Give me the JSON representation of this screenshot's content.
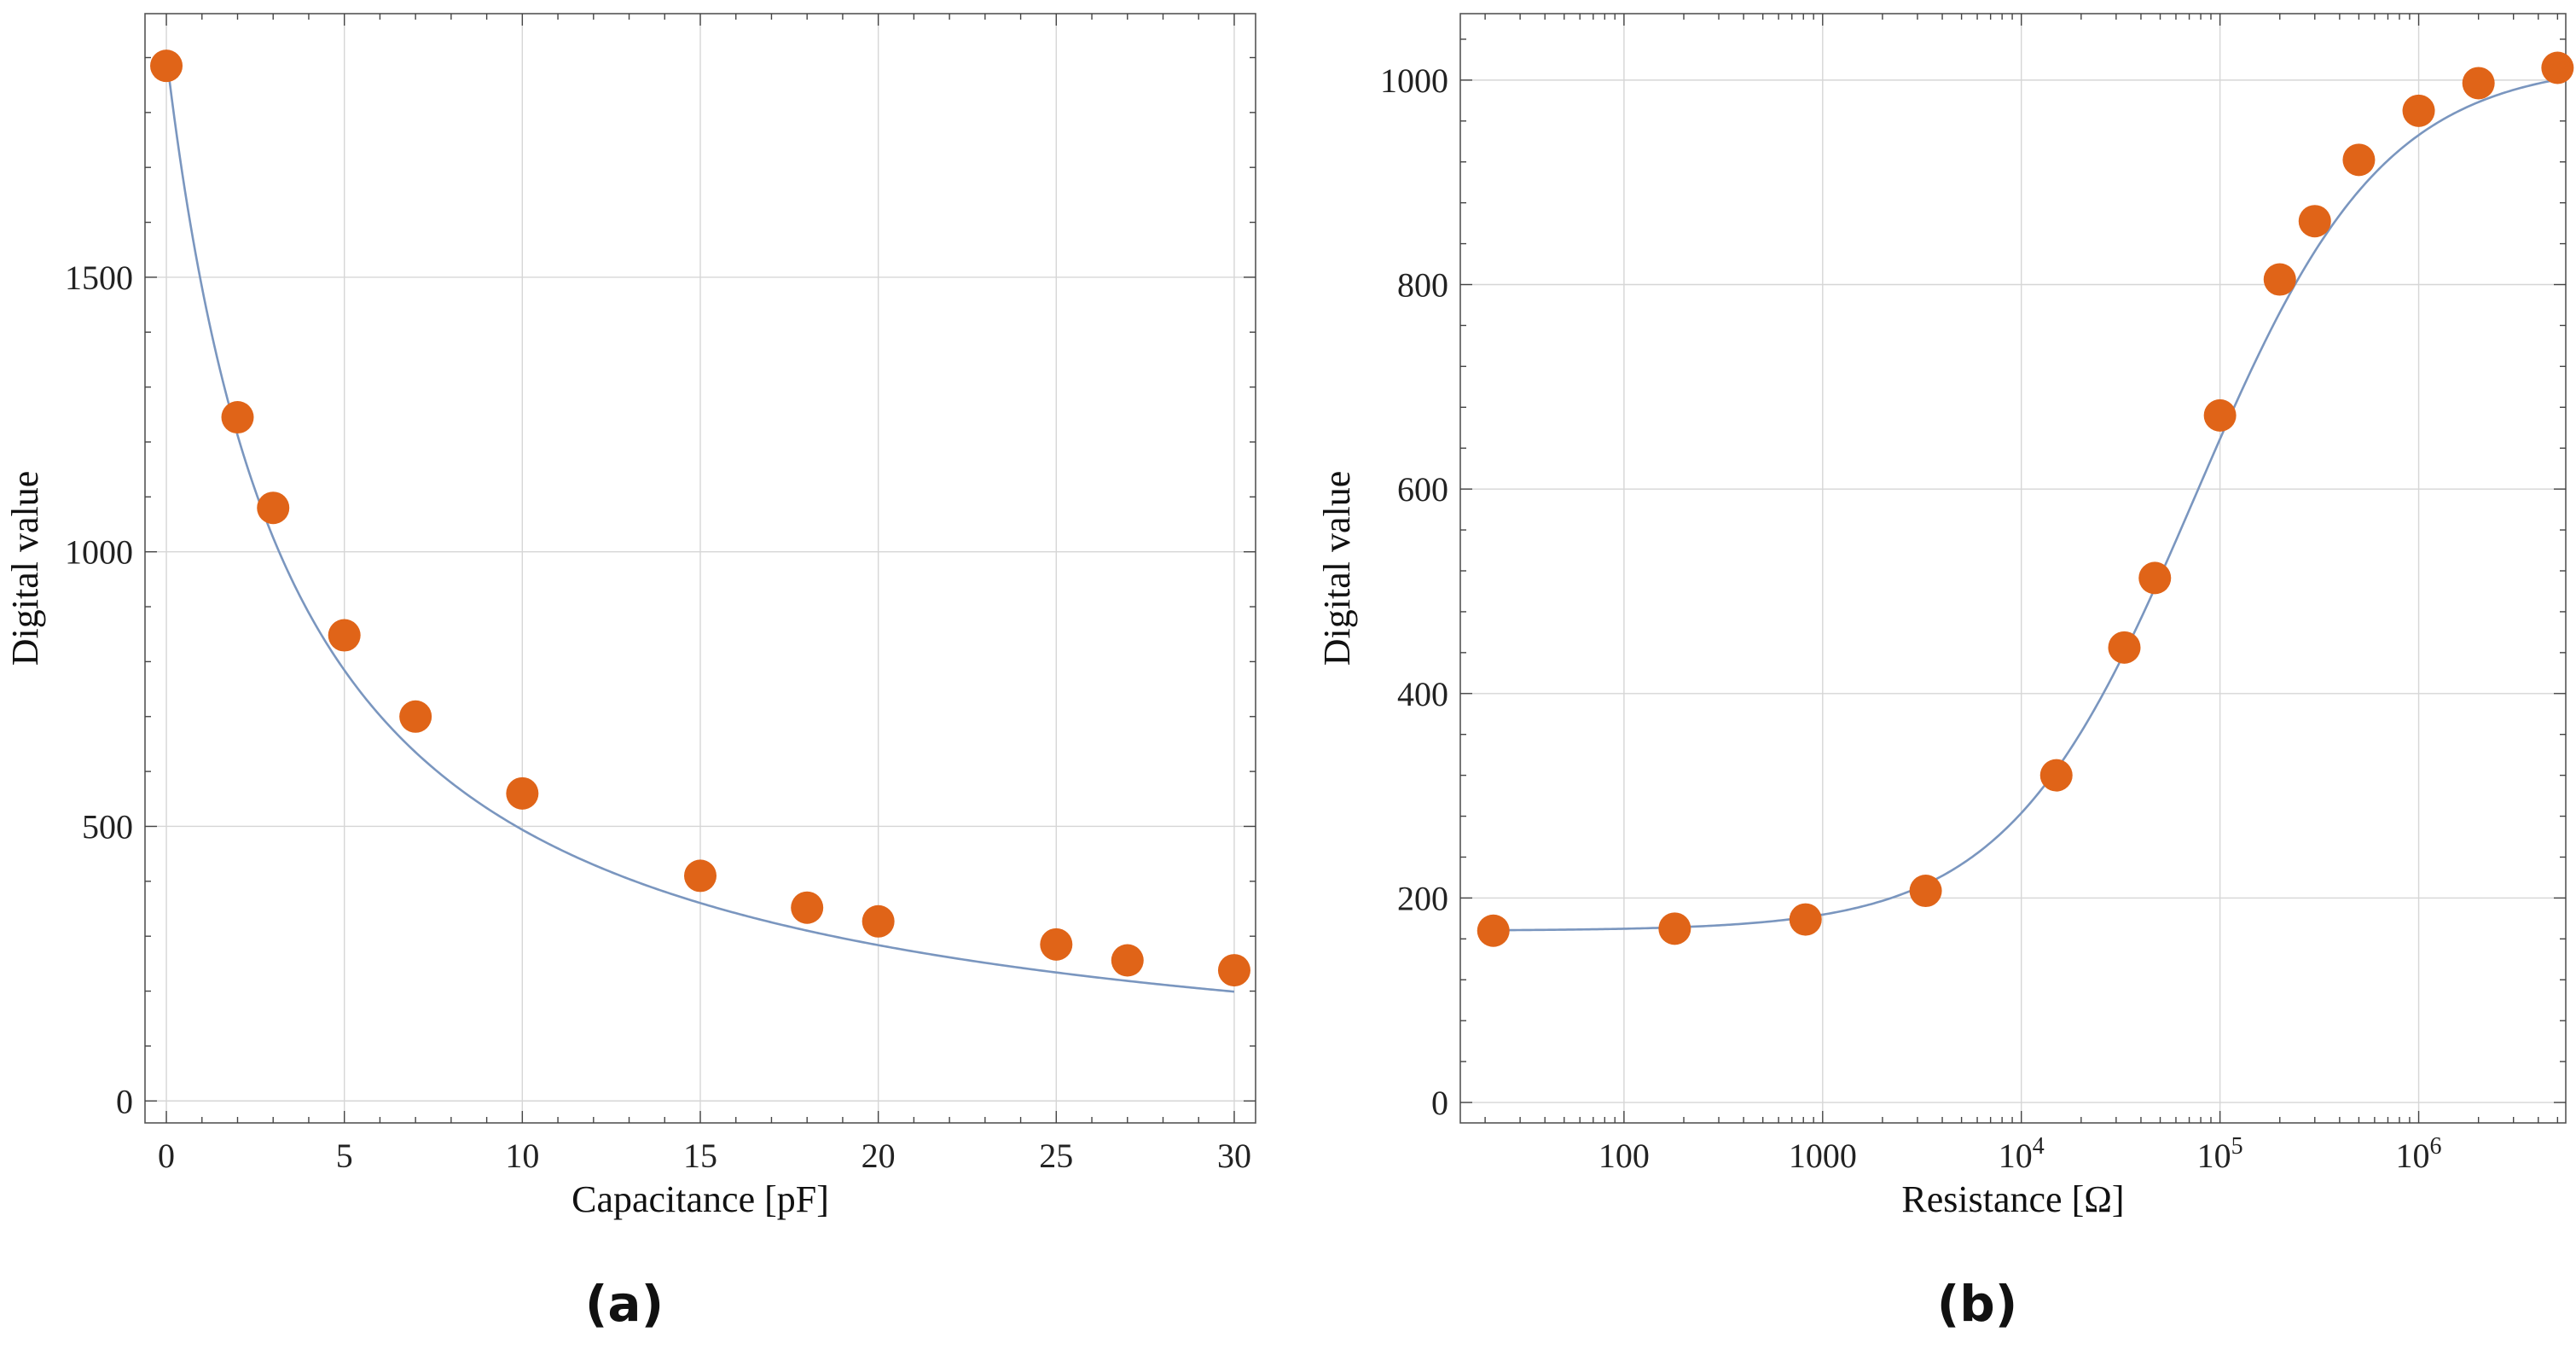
{
  "colors": {
    "marker": "#e06418",
    "curve": "#7a96bf",
    "grid": "#d6d6d6",
    "frame": "#555555"
  },
  "chart_data": [
    {
      "type": "scatter",
      "panel_label": "(a)",
      "xlabel": "Capacitance [pF]",
      "ylabel": "Digital value",
      "xlim": [
        -0.6,
        30.6
      ],
      "ylim": [
        -40,
        1980
      ],
      "x_ticks": [
        0,
        5,
        10,
        15,
        20,
        25,
        30
      ],
      "x_tick_labels": [
        "0",
        "5",
        "10",
        "15",
        "20",
        "25",
        "30"
      ],
      "y_ticks": [
        0,
        500,
        1000,
        1500
      ],
      "y_tick_labels": [
        "0",
        "500",
        "1000",
        "1500"
      ],
      "grid": true,
      "series": [
        {
          "x": [
            0,
            2,
            3,
            5,
            7,
            10,
            15,
            18,
            20,
            25,
            27,
            30
          ],
          "y": [
            1885,
            1245,
            1080,
            848,
            700,
            560,
            410,
            352,
            327,
            285,
            256,
            238
          ]
        }
      ],
      "fit_curve": {
        "form": "y = 1905 / (1 + x / 3.5)"
      }
    },
    {
      "type": "scatter",
      "panel_label": "(b)",
      "xlabel": "Resistance [Ω]",
      "ylabel": "Digital value",
      "x_scale": "log",
      "xlim": [
        15,
        5500000
      ],
      "ylim": [
        -20,
        1065
      ],
      "x_ticks": [
        100,
        1000,
        10000,
        100000,
        1000000
      ],
      "x_tick_labels": [
        {
          "base": "100",
          "exp": ""
        },
        {
          "base": "1000",
          "exp": ""
        },
        {
          "base": "10",
          "exp": "4"
        },
        {
          "base": "10",
          "exp": "5"
        },
        {
          "base": "10",
          "exp": "6"
        }
      ],
      "y_ticks": [
        0,
        200,
        400,
        600,
        800,
        1000
      ],
      "y_tick_labels": [
        "0",
        "200",
        "400",
        "600",
        "800",
        "1000"
      ],
      "grid": true,
      "series": [
        {
          "x": [
            22,
            180,
            820,
            3300,
            15000,
            33000,
            47000,
            100000,
            200000,
            300000,
            500000,
            1000000,
            2000000,
            5000000
          ],
          "y": [
            168,
            170,
            179,
            207,
            320,
            445,
            513,
            672,
            805,
            862,
            922,
            970,
            997,
            1012
          ]
        }
      ],
      "fit_curve": {
        "form": "y = 168 + 850 / (1 + (x / 75000)^-0.92)"
      }
    }
  ]
}
